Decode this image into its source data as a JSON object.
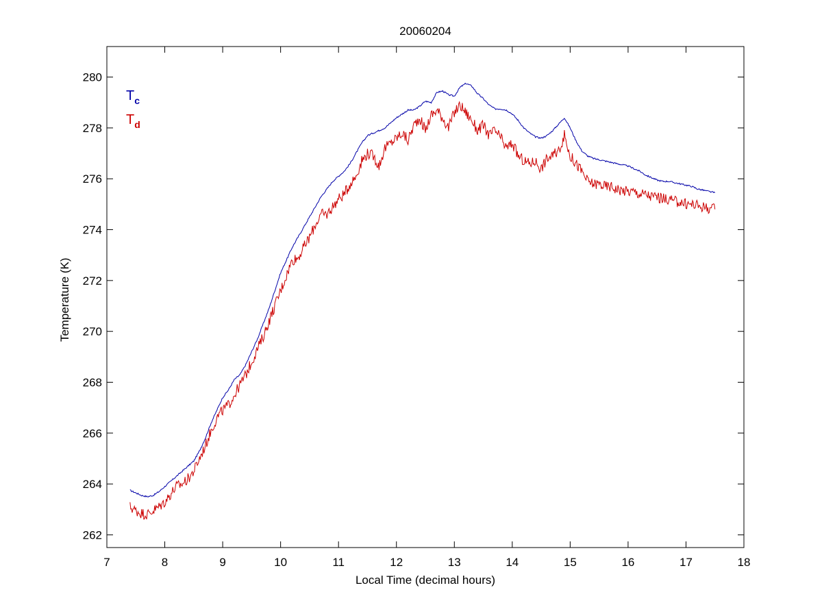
{
  "chart_data": {
    "type": "line",
    "title": "20060204",
    "xlabel": "Local Time (decimal hours)",
    "ylabel": "Temperature (K)",
    "xlim": [
      7,
      18
    ],
    "ylim": [
      261.5,
      281.2
    ],
    "xticks": [
      7,
      8,
      9,
      10,
      11,
      12,
      13,
      14,
      15,
      16,
      17,
      18
    ],
    "yticks": [
      262,
      264,
      266,
      268,
      270,
      272,
      274,
      276,
      278,
      280
    ],
    "grid": false,
    "legend": {
      "placement": "top-left",
      "entries": [
        {
          "main": "T",
          "sub": "c",
          "color": "#0000a8"
        },
        {
          "main": "T",
          "sub": "d",
          "color": "#cc0000"
        }
      ]
    },
    "series": [
      {
        "label": "Tc",
        "color": "#0000a8",
        "points": [
          [
            7.4,
            263.75
          ],
          [
            7.5,
            263.65
          ],
          [
            7.6,
            263.55
          ],
          [
            7.7,
            263.5
          ],
          [
            7.8,
            263.55
          ],
          [
            7.9,
            263.7
          ],
          [
            8.0,
            263.9
          ],
          [
            8.1,
            264.1
          ],
          [
            8.2,
            264.3
          ],
          [
            8.3,
            264.5
          ],
          [
            8.4,
            264.7
          ],
          [
            8.5,
            264.9
          ],
          [
            8.6,
            265.3
          ],
          [
            8.7,
            265.8
          ],
          [
            8.8,
            266.4
          ],
          [
            8.9,
            266.9
          ],
          [
            9.0,
            267.4
          ],
          [
            9.1,
            267.7
          ],
          [
            9.2,
            268.1
          ],
          [
            9.3,
            268.3
          ],
          [
            9.4,
            268.7
          ],
          [
            9.5,
            269.2
          ],
          [
            9.6,
            269.7
          ],
          [
            9.7,
            270.3
          ],
          [
            9.8,
            270.9
          ],
          [
            9.9,
            271.6
          ],
          [
            10.0,
            272.3
          ],
          [
            10.1,
            272.8
          ],
          [
            10.2,
            273.3
          ],
          [
            10.3,
            273.7
          ],
          [
            10.4,
            274.1
          ],
          [
            10.5,
            274.5
          ],
          [
            10.6,
            274.9
          ],
          [
            10.7,
            275.3
          ],
          [
            10.8,
            275.6
          ],
          [
            10.9,
            275.9
          ],
          [
            11.0,
            276.1
          ],
          [
            11.1,
            276.3
          ],
          [
            11.2,
            276.6
          ],
          [
            11.3,
            277.0
          ],
          [
            11.4,
            277.4
          ],
          [
            11.5,
            277.7
          ],
          [
            11.6,
            277.8
          ],
          [
            11.7,
            277.9
          ],
          [
            11.8,
            278.0
          ],
          [
            11.9,
            278.2
          ],
          [
            12.0,
            278.4
          ],
          [
            12.1,
            278.55
          ],
          [
            12.2,
            278.7
          ],
          [
            12.3,
            278.7
          ],
          [
            12.4,
            278.85
          ],
          [
            12.5,
            279.05
          ],
          [
            12.6,
            279.0
          ],
          [
            12.7,
            279.4
          ],
          [
            12.8,
            279.45
          ],
          [
            12.9,
            279.3
          ],
          [
            13.0,
            279.25
          ],
          [
            13.1,
            279.6
          ],
          [
            13.2,
            279.75
          ],
          [
            13.3,
            279.65
          ],
          [
            13.4,
            279.35
          ],
          [
            13.5,
            279.15
          ],
          [
            13.6,
            278.9
          ],
          [
            13.7,
            278.75
          ],
          [
            13.8,
            278.75
          ],
          [
            13.9,
            278.7
          ],
          [
            14.0,
            278.55
          ],
          [
            14.1,
            278.3
          ],
          [
            14.2,
            278.0
          ],
          [
            14.3,
            277.8
          ],
          [
            14.4,
            277.65
          ],
          [
            14.5,
            277.6
          ],
          [
            14.6,
            277.7
          ],
          [
            14.7,
            277.9
          ],
          [
            14.8,
            278.15
          ],
          [
            14.9,
            278.4
          ],
          [
            15.0,
            278.0
          ],
          [
            15.1,
            277.5
          ],
          [
            15.2,
            277.1
          ],
          [
            15.3,
            276.9
          ],
          [
            15.4,
            276.8
          ],
          [
            15.5,
            276.75
          ],
          [
            15.6,
            276.7
          ],
          [
            15.7,
            276.65
          ],
          [
            15.8,
            276.6
          ],
          [
            15.9,
            276.55
          ],
          [
            16.0,
            276.5
          ],
          [
            16.1,
            276.4
          ],
          [
            16.2,
            276.3
          ],
          [
            16.3,
            276.15
          ],
          [
            16.4,
            276.05
          ],
          [
            16.5,
            275.95
          ],
          [
            16.6,
            275.9
          ],
          [
            16.7,
            275.9
          ],
          [
            16.8,
            275.85
          ],
          [
            16.9,
            275.8
          ],
          [
            17.0,
            275.75
          ],
          [
            17.1,
            275.7
          ],
          [
            17.2,
            275.6
          ],
          [
            17.3,
            275.55
          ],
          [
            17.4,
            275.5
          ],
          [
            17.5,
            275.45
          ]
        ]
      },
      {
        "label": "Td",
        "color": "#cc0000",
        "points": [
          [
            7.4,
            263.1
          ],
          [
            7.5,
            262.95
          ],
          [
            7.6,
            262.85
          ],
          [
            7.7,
            262.8
          ],
          [
            7.8,
            262.95
          ],
          [
            7.9,
            263.1
          ],
          [
            8.0,
            263.3
          ],
          [
            8.1,
            263.6
          ],
          [
            8.2,
            263.9
          ],
          [
            8.3,
            264.0
          ],
          [
            8.4,
            264.2
          ],
          [
            8.5,
            264.5
          ],
          [
            8.6,
            265.0
          ],
          [
            8.7,
            265.5
          ],
          [
            8.8,
            266.1
          ],
          [
            8.9,
            266.6
          ],
          [
            9.0,
            266.9
          ],
          [
            9.1,
            267.1
          ],
          [
            9.2,
            267.5
          ],
          [
            9.3,
            267.9
          ],
          [
            9.4,
            268.3
          ],
          [
            9.5,
            268.8
          ],
          [
            9.6,
            269.3
          ],
          [
            9.7,
            269.8
          ],
          [
            9.8,
            270.4
          ],
          [
            9.9,
            271.0
          ],
          [
            10.0,
            271.6
          ],
          [
            10.1,
            272.2
          ],
          [
            10.2,
            272.8
          ],
          [
            10.3,
            272.9
          ],
          [
            10.4,
            273.3
          ],
          [
            10.5,
            273.7
          ],
          [
            10.6,
            274.2
          ],
          [
            10.7,
            274.6
          ],
          [
            10.8,
            274.6
          ],
          [
            10.9,
            274.9
          ],
          [
            11.0,
            275.2
          ],
          [
            11.1,
            275.4
          ],
          [
            11.2,
            275.8
          ],
          [
            11.3,
            276.1
          ],
          [
            11.4,
            276.7
          ],
          [
            11.5,
            277.0
          ],
          [
            11.6,
            276.9
          ],
          [
            11.7,
            276.5
          ],
          [
            11.8,
            277.2
          ],
          [
            11.9,
            277.4
          ],
          [
            12.0,
            277.6
          ],
          [
            12.1,
            277.8
          ],
          [
            12.2,
            277.5
          ],
          [
            12.3,
            278.1
          ],
          [
            12.4,
            278.4
          ],
          [
            12.5,
            277.9
          ],
          [
            12.6,
            278.5
          ],
          [
            12.7,
            278.7
          ],
          [
            12.8,
            278.4
          ],
          [
            12.9,
            278.0
          ],
          [
            13.0,
            278.6
          ],
          [
            13.1,
            278.9
          ],
          [
            13.2,
            278.6
          ],
          [
            13.3,
            278.3
          ],
          [
            13.4,
            277.9
          ],
          [
            13.5,
            278.1
          ],
          [
            13.6,
            277.7
          ],
          [
            13.7,
            277.9
          ],
          [
            13.8,
            277.6
          ],
          [
            13.9,
            277.2
          ],
          [
            14.0,
            277.4
          ],
          [
            14.1,
            276.9
          ],
          [
            14.2,
            276.7
          ],
          [
            14.3,
            276.6
          ],
          [
            14.4,
            276.7
          ],
          [
            14.5,
            276.4
          ],
          [
            14.6,
            276.8
          ],
          [
            14.7,
            276.9
          ],
          [
            14.8,
            277.1
          ],
          [
            14.9,
            277.7
          ],
          [
            15.0,
            276.9
          ],
          [
            15.1,
            276.6
          ],
          [
            15.2,
            276.3
          ],
          [
            15.3,
            275.9
          ],
          [
            15.4,
            275.8
          ],
          [
            15.5,
            275.8
          ],
          [
            15.6,
            275.7
          ],
          [
            15.7,
            275.7
          ],
          [
            15.8,
            275.6
          ],
          [
            15.9,
            275.55
          ],
          [
            16.0,
            275.5
          ],
          [
            16.1,
            275.5
          ],
          [
            16.2,
            275.4
          ],
          [
            16.3,
            275.4
          ],
          [
            16.4,
            275.3
          ],
          [
            16.5,
            275.3
          ],
          [
            16.6,
            275.2
          ],
          [
            16.7,
            275.2
          ],
          [
            16.8,
            275.1
          ],
          [
            16.9,
            275.1
          ],
          [
            17.0,
            275.0
          ],
          [
            17.1,
            275.0
          ],
          [
            17.2,
            274.95
          ],
          [
            17.3,
            274.9
          ],
          [
            17.4,
            274.85
          ],
          [
            17.5,
            274.8
          ]
        ]
      }
    ]
  }
}
